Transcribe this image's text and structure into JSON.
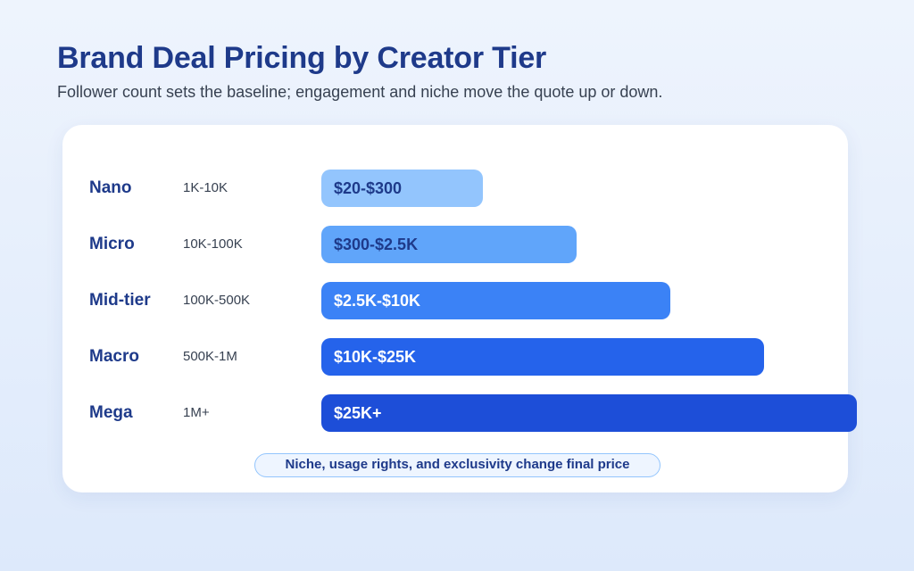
{
  "header": {
    "title": "Brand Deal Pricing by Creator Tier",
    "subtitle": "Follower count sets the baseline; engagement and niche move the quote up or down."
  },
  "chart_data": {
    "type": "bar",
    "orientation": "horizontal",
    "title": "Brand Deal Pricing by Creator Tier",
    "subtitle": "Follower count sets the baseline; engagement and niche move the quote up or down.",
    "categories": [
      "Nano",
      "Micro",
      "Mid-tier",
      "Macro",
      "Mega"
    ],
    "follower_ranges": [
      "1K-10K",
      "10K-100K",
      "100K-500K",
      "500K-1M",
      "1M+"
    ],
    "bar_labels": [
      "$20-$300",
      "$300-$2.5K",
      "$2.5K-$10K",
      "$10K-$25K",
      "$25K+"
    ],
    "relative_values": [
      1,
      2,
      3,
      4,
      5
    ],
    "colors": [
      "#93c5fd",
      "#60a5fa",
      "#3b82f6",
      "#2563eb",
      "#1d4ed8"
    ],
    "label_colors": [
      "#1e3a8a",
      "#1e3a8a",
      "#ffffff",
      "#ffffff",
      "#ffffff"
    ],
    "note": "Niche, usage rights, and exclusivity change final price",
    "grid": false,
    "legend": "none"
  }
}
